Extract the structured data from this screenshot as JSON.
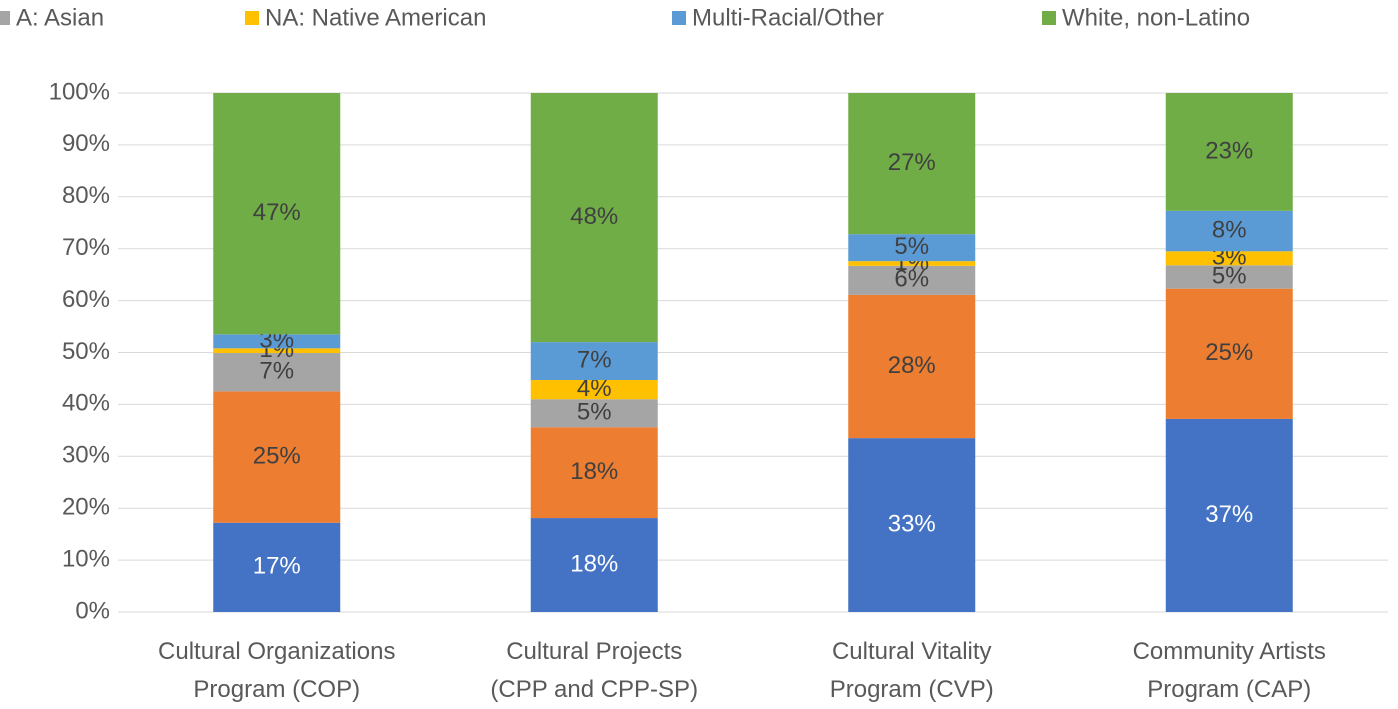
{
  "chart_data": {
    "type": "stacked_bar",
    "categories": [
      "Cultural Organizations\nProgram (COP)",
      "Cultural Projects\n(CPP and CPP-SP)",
      "Cultural Vitality\nProgram (CVP)",
      "Community Artists\nProgram (CAP)"
    ],
    "series": [
      {
        "color": "#4472c4",
        "values": [
          17.2,
          18.1,
          33.5,
          37.2
        ],
        "value_labels": [
          "17%",
          "18%",
          "33%",
          "37%"
        ]
      },
      {
        "color": "#ed7d31",
        "values": [
          25.3,
          17.5,
          27.6,
          25.1
        ],
        "value_labels": [
          "25%",
          "18%",
          "28%",
          "25%"
        ]
      },
      {
        "name": "A: Asian",
        "color": "#a5a5a5",
        "values": [
          7.4,
          5.4,
          5.6,
          4.5
        ],
        "value_labels": [
          "7%",
          "5%",
          "6%",
          "5%"
        ]
      },
      {
        "name": "NA: Native American",
        "color": "#ffc000",
        "values": [
          0.9,
          3.7,
          0.9,
          2.7
        ],
        "value_labels": [
          "1%",
          "4%",
          "1%",
          "3%"
        ]
      },
      {
        "name": "Multi-Racial/Other",
        "color": "#5b9bd5",
        "values": [
          2.7,
          7.3,
          5.2,
          7.8
        ],
        "value_labels": [
          "3%",
          "7%",
          "5%",
          "8%"
        ]
      },
      {
        "name": "White, non-Latino",
        "color": "#70ad47",
        "values": [
          46.5,
          48.0,
          27.2,
          22.7
        ],
        "value_labels": [
          "47%",
          "48%",
          "27%",
          "23%"
        ]
      }
    ],
    "ylim": [
      0,
      100
    ],
    "yticks": [
      {
        "value": 0,
        "label": "0%"
      },
      {
        "value": 10,
        "label": "10%"
      },
      {
        "value": 20,
        "label": "20%"
      },
      {
        "value": 30,
        "label": "30%"
      },
      {
        "value": 40,
        "label": "40%"
      },
      {
        "value": 50,
        "label": "50%"
      },
      {
        "value": 60,
        "label": "60%"
      },
      {
        "value": 70,
        "label": "70%"
      },
      {
        "value": 80,
        "label": "80%"
      },
      {
        "value": 90,
        "label": "90%"
      },
      {
        "value": 100,
        "label": "100%"
      }
    ],
    "grid": true,
    "legend": "top"
  }
}
